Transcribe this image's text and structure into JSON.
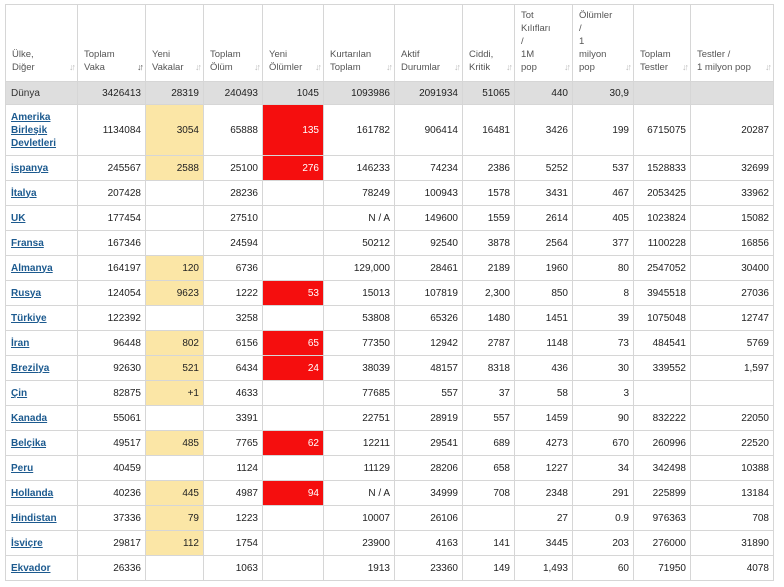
{
  "headers": [
    {
      "lines": [
        "Ülke,",
        "Diğer"
      ]
    },
    {
      "lines": [
        "Toplam",
        "Vaka"
      ],
      "active": true
    },
    {
      "lines": [
        "Yeni",
        "Vakalar"
      ]
    },
    {
      "lines": [
        "Toplam",
        "Ölüm"
      ]
    },
    {
      "lines": [
        "Yeni",
        "Ölümler"
      ]
    },
    {
      "lines": [
        "Kurtarılan",
        "Toplam"
      ]
    },
    {
      "lines": [
        "Aktif",
        "Durumlar"
      ]
    },
    {
      "lines": [
        "Ciddi,",
        "Kritik"
      ]
    },
    {
      "lines": [
        "Tot",
        "Kılıfları",
        "/",
        "1M",
        "pop"
      ]
    },
    {
      "lines": [
        "Ölümler",
        "/",
        "1",
        "milyon",
        "pop"
      ]
    },
    {
      "lines": [
        "Toplam",
        "Testler"
      ]
    },
    {
      "lines": [
        "Testler /",
        "1 milyon pop"
      ]
    }
  ],
  "world": {
    "country": "Dünya",
    "total_cases": "3426413",
    "new_cases": "28319",
    "total_deaths": "240493",
    "new_deaths": "1045",
    "total_recovered": "1093986",
    "active_cases": "2091934",
    "serious": "51065",
    "cases_per_1m": "440",
    "deaths_per_1m": "30,9",
    "total_tests": "",
    "tests_per_1m": ""
  },
  "rows": [
    {
      "country": "Amerika Birleşik Devletleri",
      "total_cases": "1134084",
      "new_cases": "3054",
      "total_deaths": "65888",
      "new_deaths": "135",
      "total_recovered": "161782",
      "active_cases": "906414",
      "serious": "16481",
      "cases_per_1m": "3426",
      "deaths_per_1m": "199",
      "total_tests": "6715075",
      "tests_per_1m": "20287"
    },
    {
      "country": "ispanya",
      "total_cases": "245567",
      "new_cases": "2588",
      "total_deaths": "25100",
      "new_deaths": "276",
      "total_recovered": "146233",
      "active_cases": "74234",
      "serious": "2386",
      "cases_per_1m": "5252",
      "deaths_per_1m": "537",
      "total_tests": "1528833",
      "tests_per_1m": "32699"
    },
    {
      "country": "İtalya",
      "total_cases": "207428",
      "new_cases": "",
      "total_deaths": "28236",
      "new_deaths": "",
      "total_recovered": "78249",
      "active_cases": "100943",
      "serious": "1578",
      "cases_per_1m": "3431",
      "deaths_per_1m": "467",
      "total_tests": "2053425",
      "tests_per_1m": "33962"
    },
    {
      "country": "UK",
      "total_cases": "177454",
      "new_cases": "",
      "total_deaths": "27510",
      "new_deaths": "",
      "total_recovered": "N / A",
      "active_cases": "149600",
      "serious": "1559",
      "cases_per_1m": "2614",
      "deaths_per_1m": "405",
      "total_tests": "1023824",
      "tests_per_1m": "15082"
    },
    {
      "country": "Fransa",
      "total_cases": "167346",
      "new_cases": "",
      "total_deaths": "24594",
      "new_deaths": "",
      "total_recovered": "50212",
      "active_cases": "92540",
      "serious": "3878",
      "cases_per_1m": "2564",
      "deaths_per_1m": "377",
      "total_tests": "1100228",
      "tests_per_1m": "16856"
    },
    {
      "country": "Almanya",
      "total_cases": "164197",
      "new_cases": "120",
      "total_deaths": "6736",
      "new_deaths": "",
      "total_recovered": "129,000",
      "active_cases": "28461",
      "serious": "2189",
      "cases_per_1m": "1960",
      "deaths_per_1m": "80",
      "total_tests": "2547052",
      "tests_per_1m": "30400"
    },
    {
      "country": "Rusya",
      "total_cases": "124054",
      "new_cases": "9623",
      "total_deaths": "1222",
      "new_deaths": "53",
      "total_recovered": "15013",
      "active_cases": "107819",
      "serious": "2,300",
      "cases_per_1m": "850",
      "deaths_per_1m": "8",
      "total_tests": "3945518",
      "tests_per_1m": "27036"
    },
    {
      "country": "Türkiye",
      "total_cases": "122392",
      "new_cases": "",
      "total_deaths": "3258",
      "new_deaths": "",
      "total_recovered": "53808",
      "active_cases": "65326",
      "serious": "1480",
      "cases_per_1m": "1451",
      "deaths_per_1m": "39",
      "total_tests": "1075048",
      "tests_per_1m": "12747"
    },
    {
      "country": "İran",
      "total_cases": "96448",
      "new_cases": "802",
      "total_deaths": "6156",
      "new_deaths": "65",
      "total_recovered": "77350",
      "active_cases": "12942",
      "serious": "2787",
      "cases_per_1m": "1148",
      "deaths_per_1m": "73",
      "total_tests": "484541",
      "tests_per_1m": "5769"
    },
    {
      "country": "Brezilya",
      "total_cases": "92630",
      "new_cases": "521",
      "total_deaths": "6434",
      "new_deaths": "24",
      "total_recovered": "38039",
      "active_cases": "48157",
      "serious": "8318",
      "cases_per_1m": "436",
      "deaths_per_1m": "30",
      "total_tests": "339552",
      "tests_per_1m": "1,597"
    },
    {
      "country": "Çin",
      "total_cases": "82875",
      "new_cases": "+1",
      "total_deaths": "4633",
      "new_deaths": "",
      "total_recovered": "77685",
      "active_cases": "557",
      "serious": "37",
      "cases_per_1m": "58",
      "deaths_per_1m": "3",
      "total_tests": "",
      "tests_per_1m": ""
    },
    {
      "country": "Kanada",
      "total_cases": "55061",
      "new_cases": "",
      "total_deaths": "3391",
      "new_deaths": "",
      "total_recovered": "22751",
      "active_cases": "28919",
      "serious": "557",
      "cases_per_1m": "1459",
      "deaths_per_1m": "90",
      "total_tests": "832222",
      "tests_per_1m": "22050"
    },
    {
      "country": "Belçika",
      "total_cases": "49517",
      "new_cases": "485",
      "total_deaths": "7765",
      "new_deaths": "62",
      "total_recovered": "12211",
      "active_cases": "29541",
      "serious": "689",
      "cases_per_1m": "4273",
      "deaths_per_1m": "670",
      "total_tests": "260996",
      "tests_per_1m": "22520"
    },
    {
      "country": "Peru",
      "total_cases": "40459",
      "new_cases": "",
      "total_deaths": "1124",
      "new_deaths": "",
      "total_recovered": "11129",
      "active_cases": "28206",
      "serious": "658",
      "cases_per_1m": "1227",
      "deaths_per_1m": "34",
      "total_tests": "342498",
      "tests_per_1m": "10388"
    },
    {
      "country": "Hollanda",
      "total_cases": "40236",
      "new_cases": "445",
      "total_deaths": "4987",
      "new_deaths": "94",
      "total_recovered": "N / A",
      "active_cases": "34999",
      "serious": "708",
      "cases_per_1m": "2348",
      "deaths_per_1m": "291",
      "total_tests": "225899",
      "tests_per_1m": "13184"
    },
    {
      "country": "Hindistan",
      "total_cases": "37336",
      "new_cases": "79",
      "total_deaths": "1223",
      "new_deaths": "",
      "total_recovered": "10007",
      "active_cases": "26106",
      "serious": "",
      "cases_per_1m": "27",
      "deaths_per_1m": "0.9",
      "total_tests": "976363",
      "tests_per_1m": "708"
    },
    {
      "country": "İsviçre",
      "total_cases": "29817",
      "new_cases": "112",
      "total_deaths": "1754",
      "new_deaths": "",
      "total_recovered": "23900",
      "active_cases": "4163",
      "serious": "141",
      "cases_per_1m": "3445",
      "deaths_per_1m": "203",
      "total_tests": "276000",
      "tests_per_1m": "31890"
    },
    {
      "country": "Ekvador",
      "total_cases": "26336",
      "new_cases": "",
      "total_deaths": "1063",
      "new_deaths": "",
      "total_recovered": "1913",
      "active_cases": "23360",
      "serious": "149",
      "cases_per_1m": "1,493",
      "deaths_per_1m": "60",
      "total_tests": "71950",
      "tests_per_1m": "4078"
    }
  ],
  "colors": {
    "new_cases_highlight": "#fbe6a6",
    "new_deaths_highlight": "#f50e0e",
    "link": "#1c5a8f",
    "world_row_bg": "#dedede"
  }
}
